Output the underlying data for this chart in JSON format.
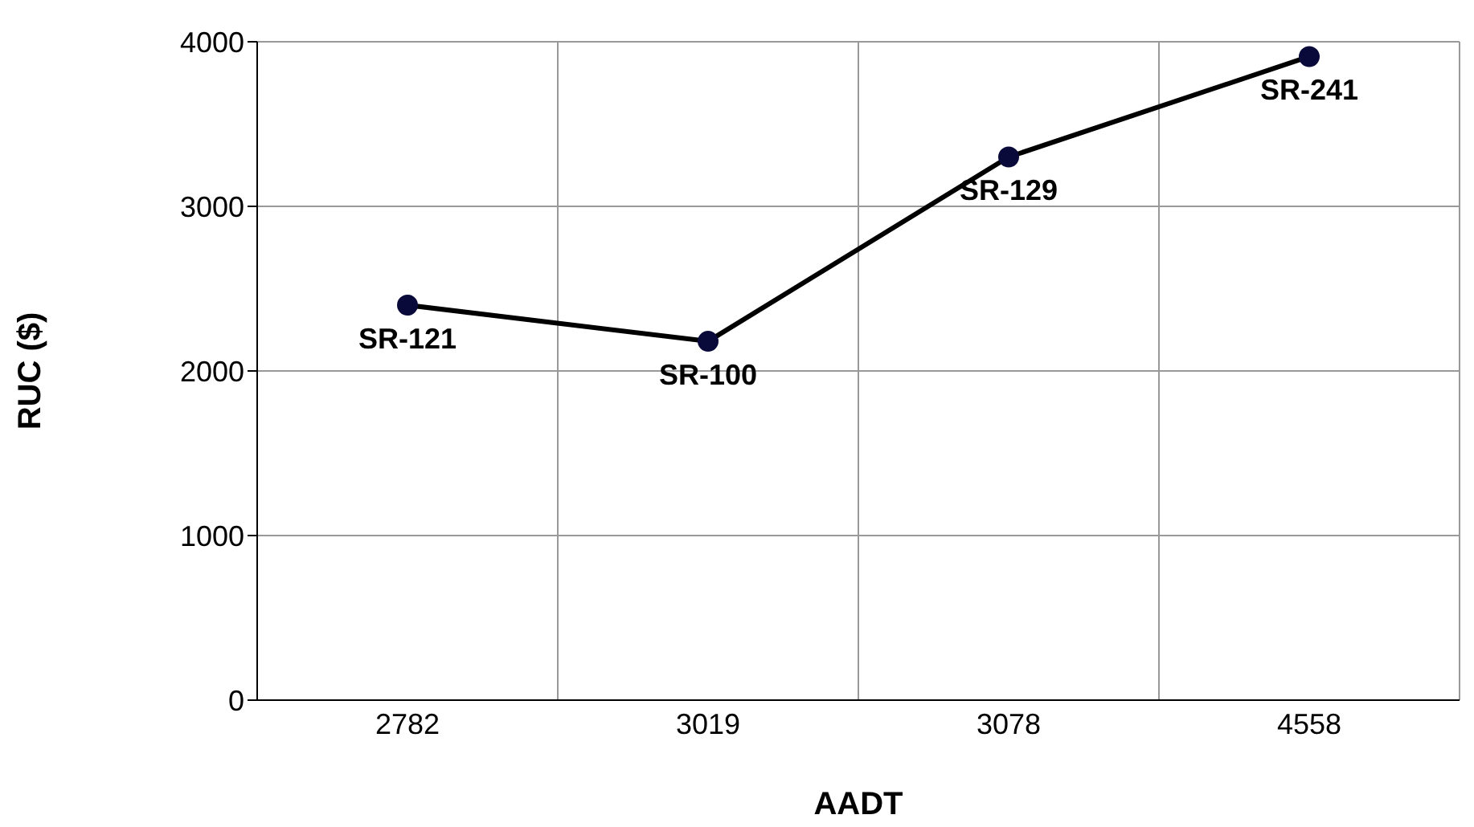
{
  "chart_data": {
    "type": "line",
    "xlabel": "AADT",
    "ylabel": "RUC ($)",
    "categories": [
      "2782",
      "3019",
      "3078",
      "4558"
    ],
    "series": [
      {
        "color": "#000000",
        "values": [
          2400,
          2180,
          3300,
          3910
        ]
      }
    ],
    "marker": "circle",
    "line_style": "solid",
    "ylim": [
      0,
      4000
    ],
    "yticks": [
      0,
      1000,
      2000,
      3000,
      4000
    ],
    "grid": true,
    "legend": false,
    "annotations": [
      {
        "text": "SR-121",
        "x": "2782",
        "y": 2400
      },
      {
        "text": "SR-100",
        "x": "3019",
        "y": 2180
      },
      {
        "text": "SR-129",
        "x": "3078",
        "y": 3300
      },
      {
        "text": "SR-241",
        "x": "4558",
        "y": 3910
      }
    ]
  }
}
